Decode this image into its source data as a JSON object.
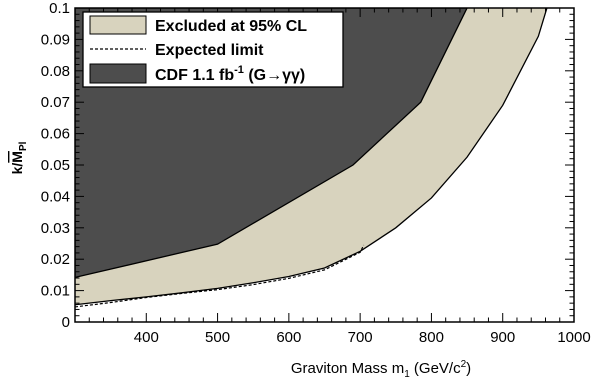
{
  "chart_data": {
    "type": "area",
    "xlabel_main": "Graviton Mass m",
    "xlabel_sub": "1",
    "xlabel_tail": " (GeV/c",
    "xlabel_sup": "2",
    "xlabel_close": ")",
    "ylabel_main": "k/",
    "ylabel_m": "M",
    "ylabel_sub": "Pl",
    "xlim": [
      300,
      1000
    ],
    "ylim": [
      0,
      0.1
    ],
    "x_ticks": [
      400,
      500,
      600,
      700,
      800,
      900,
      1000
    ],
    "x_tick_labels": [
      "400",
      "500",
      "600",
      "700",
      "800",
      "900",
      "1000"
    ],
    "y_ticks": [
      0,
      0.01,
      0.02,
      0.03,
      0.04,
      0.05,
      0.06,
      0.07,
      0.08,
      0.09,
      0.1
    ],
    "y_tick_labels": [
      "0",
      "0.01",
      "0.02",
      "0.03",
      "0.04",
      "0.05",
      "0.06",
      "0.07",
      "0.08",
      "0.09",
      "0.1"
    ],
    "grid": false,
    "legend_position": "top-left",
    "series": [
      {
        "name": "Excluded at 95% CL",
        "kind": "band",
        "color": "#d8d3be",
        "x": [
          300,
          350,
          400,
          450,
          500,
          550,
          600,
          650,
          700,
          750,
          800,
          850,
          900,
          950,
          962
        ],
        "y": [
          0.0055,
          0.0068,
          0.008,
          0.0093,
          0.0107,
          0.0125,
          0.0145,
          0.0172,
          0.0225,
          0.03,
          0.0395,
          0.0525,
          0.069,
          0.091,
          0.1
        ]
      },
      {
        "name": "Expected limit",
        "kind": "dashed-line",
        "color": "#000000",
        "x": [
          300,
          350,
          400,
          450,
          500,
          550,
          600,
          650,
          700,
          705
        ],
        "y": [
          0.0048,
          0.0062,
          0.0078,
          0.0091,
          0.0103,
          0.0119,
          0.0139,
          0.0166,
          0.0222,
          0.0245
        ]
      },
      {
        "name": "CDF 1.1 fb",
        "name_sup": "-1",
        "name_tail": " (G→γγ)",
        "kind": "region",
        "color": "#4d4d4d",
        "x": [
          300,
          500,
          690,
          785,
          850
        ],
        "y": [
          0.0142,
          0.0248,
          0.05,
          0.07,
          0.1
        ]
      }
    ]
  }
}
